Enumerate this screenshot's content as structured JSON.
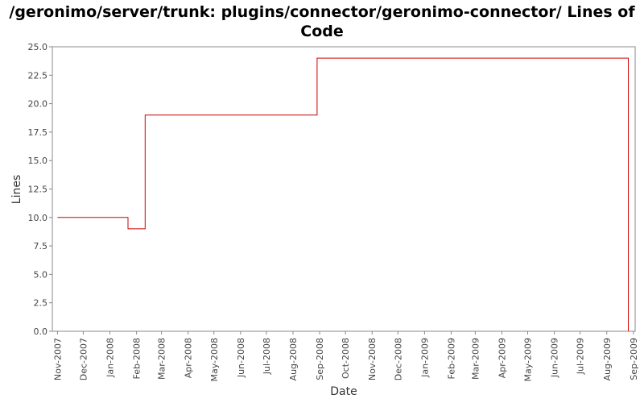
{
  "chart_data": {
    "type": "line",
    "title_lines": [
      "/geronimo/server/trunk: plugins/connector/geronimo-connector/ Lines of",
      "Code"
    ],
    "xlabel": "Date",
    "ylabel": "Lines",
    "ylim": [
      0,
      25
    ],
    "yticks": [
      "0.0",
      "2.5",
      "5.0",
      "7.5",
      "10.0",
      "12.5",
      "15.0",
      "17.5",
      "20.0",
      "22.5",
      "25.0"
    ],
    "xticks": [
      "Nov-2007",
      "Dec-2007",
      "Jan-2008",
      "Feb-2008",
      "Mar-2008",
      "Apr-2008",
      "May-2008",
      "Jun-2008",
      "Jul-2008",
      "Aug-2008",
      "Sep-2008",
      "Oct-2008",
      "Nov-2008",
      "Dec-2008",
      "Jan-2009",
      "Feb-2009",
      "Mar-2009",
      "Apr-2009",
      "May-2009",
      "Jun-2009",
      "Jul-2009",
      "Aug-2009",
      "Sep-2009"
    ],
    "xlim": [
      "2007-10-26",
      "2009-09-03"
    ],
    "grid": false,
    "line_style": "step",
    "series": [
      {
        "color": "#cc0000",
        "points": [
          {
            "x": "2007-11-01",
            "y": 10
          },
          {
            "x": "2008-01-22",
            "y": 9
          },
          {
            "x": "2008-02-11",
            "y": 19
          },
          {
            "x": "2008-08-29",
            "y": 24
          },
          {
            "x": "2009-08-26",
            "y": 0
          }
        ]
      }
    ]
  }
}
